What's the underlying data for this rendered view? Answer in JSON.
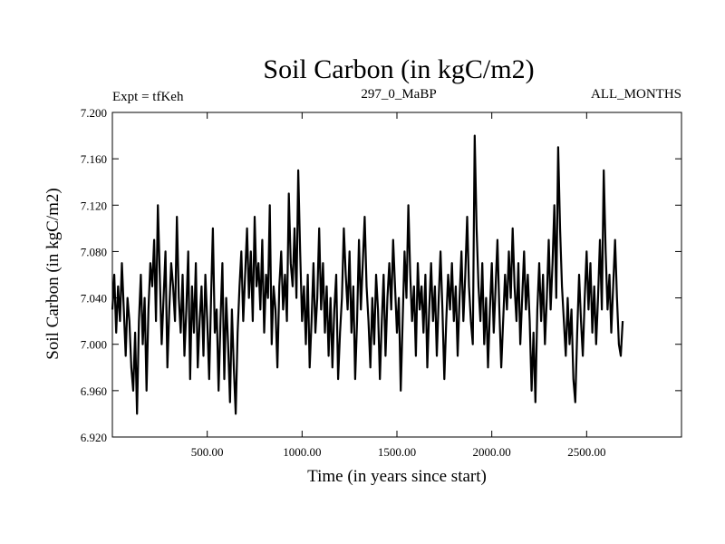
{
  "chart_data": {
    "type": "line",
    "title": "Soil Carbon (in kgC/m2)",
    "left_annotation": "Expt = tfKeh",
    "center_annotation": "297_0_MaBP",
    "right_annotation": "ALL_MONTHS",
    "xlabel": "Time (in years since start)",
    "ylabel": "Soil Carbon (in kgC/m2)",
    "xlim": [
      0,
      3000
    ],
    "ylim": [
      6.92,
      7.2
    ],
    "x_ticks": [
      500,
      1000,
      1500,
      2000,
      2500
    ],
    "x_tick_labels": [
      "500.00",
      "1000.00",
      "1500.00",
      "2000.00",
      "2500.00"
    ],
    "y_ticks": [
      6.92,
      6.96,
      7.0,
      7.04,
      7.08,
      7.12,
      7.16,
      7.2
    ],
    "y_tick_labels": [
      "6.920",
      "6.960",
      "7.000",
      "7.040",
      "7.080",
      "7.120",
      "7.160",
      "7.200"
    ],
    "grid": false,
    "series_color": "#000000",
    "series_x_step": 10,
    "series": [
      {
        "values": [
          7.03,
          7.06,
          7.01,
          7.05,
          7.02,
          7.07,
          7.03,
          6.99,
          7.04,
          7.02,
          6.98,
          6.96,
          7.01,
          6.94,
          7.02,
          7.06,
          7.0,
          7.04,
          6.96,
          7.03,
          7.07,
          7.05,
          7.09,
          7.02,
          7.12,
          7.06,
          7.0,
          7.04,
          7.08,
          6.98,
          7.03,
          7.07,
          7.05,
          7.02,
          7.11,
          7.04,
          7.01,
          7.06,
          6.99,
          7.03,
          7.08,
          6.97,
          7.05,
          7.01,
          7.07,
          6.98,
          7.02,
          7.05,
          6.99,
          7.06,
          7.02,
          6.97,
          7.04,
          7.1,
          7.01,
          7.03,
          6.96,
          7.02,
          7.07,
          6.97,
          7.04,
          7.0,
          6.95,
          7.03,
          6.98,
          6.94,
          7.01,
          7.05,
          7.08,
          7.02,
          7.06,
          7.1,
          7.04,
          7.08,
          7.02,
          7.11,
          7.05,
          7.07,
          7.03,
          7.09,
          7.01,
          7.06,
          7.04,
          7.12,
          7.0,
          7.05,
          7.03,
          6.98,
          7.05,
          7.08,
          7.03,
          7.06,
          7.02,
          7.13,
          7.07,
          7.05,
          7.1,
          7.04,
          7.15,
          7.08,
          7.02,
          7.05,
          7.0,
          7.06,
          6.98,
          7.02,
          7.07,
          7.01,
          7.04,
          7.1,
          7.03,
          7.07,
          7.01,
          7.05,
          6.99,
          7.04,
          6.98,
          7.03,
          7.06,
          6.97,
          7.01,
          7.04,
          7.1,
          7.06,
          7.03,
          7.08,
          7.01,
          7.05,
          6.97,
          7.02,
          7.09,
          7.03,
          7.07,
          7.11,
          7.05,
          7.02,
          6.98,
          7.04,
          7.0,
          7.06,
          7.03,
          6.97,
          7.02,
          7.06,
          6.99,
          7.04,
          7.07,
          7.03,
          7.09,
          7.05,
          7.01,
          7.04,
          6.96,
          7.02,
          7.08,
          7.04,
          7.12,
          7.06,
          7.02,
          7.05,
          6.99,
          7.07,
          7.03,
          7.05,
          7.01,
          7.06,
          6.98,
          7.03,
          7.07,
          7.02,
          7.05,
          6.99,
          7.04,
          7.08,
          7.03,
          6.97,
          7.02,
          7.06,
          7.03,
          7.07,
          7.02,
          7.05,
          6.99,
          7.04,
          7.08,
          7.02,
          7.06,
          7.11,
          7.05,
          7.02,
          7.0,
          7.18,
          7.1,
          7.05,
          7.02,
          7.07,
          7.0,
          7.04,
          6.98,
          7.03,
          7.07,
          7.01,
          7.05,
          7.09,
          7.03,
          6.98,
          7.02,
          7.06,
          7.03,
          7.08,
          7.04,
          7.1,
          7.05,
          7.02,
          7.07,
          7.0,
          7.04,
          7.08,
          7.03,
          7.06,
          7.02,
          6.96,
          7.01,
          6.95,
          7.03,
          7.07,
          7.02,
          7.06,
          7.0,
          7.04,
          7.09,
          7.03,
          7.07,
          7.12,
          7.04,
          7.17,
          7.1,
          7.05,
          7.02,
          6.99,
          7.04,
          7.0,
          7.03,
          6.97,
          6.95,
          7.01,
          7.06,
          7.02,
          6.99,
          7.04,
          7.08,
          7.03,
          7.07,
          7.01,
          7.05,
          7.0,
          7.04,
          7.09,
          7.03,
          7.15,
          7.08,
          7.03,
          7.06,
          7.01,
          7.05,
          7.09,
          7.04,
          7.0,
          6.99,
          7.02
        ]
      }
    ]
  }
}
